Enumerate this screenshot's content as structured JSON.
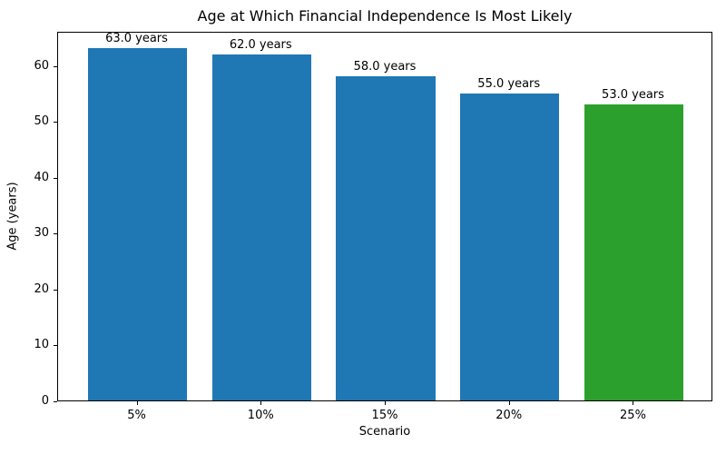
{
  "chart_data": {
    "type": "bar",
    "title": "Age at Which Financial Independence Is Most Likely",
    "xlabel": "Scenario",
    "ylabel": "Age (years)",
    "categories": [
      "5%",
      "10%",
      "15%",
      "20%",
      "25%"
    ],
    "values": [
      63.0,
      62.0,
      58.0,
      55.0,
      53.0
    ],
    "bar_labels": [
      "63.0 years",
      "62.0 years",
      "58.0 years",
      "55.0 years",
      "53.0 years"
    ],
    "bar_colors": [
      "#1f77b4",
      "#1f77b4",
      "#1f77b4",
      "#1f77b4",
      "#2ca02c"
    ],
    "yticks": [
      0,
      10,
      20,
      30,
      40,
      50,
      60
    ],
    "ylim": [
      0,
      66.15
    ],
    "grid": false,
    "legend_position": "none",
    "background_color": "#ffffff",
    "text_color": "#000000"
  }
}
